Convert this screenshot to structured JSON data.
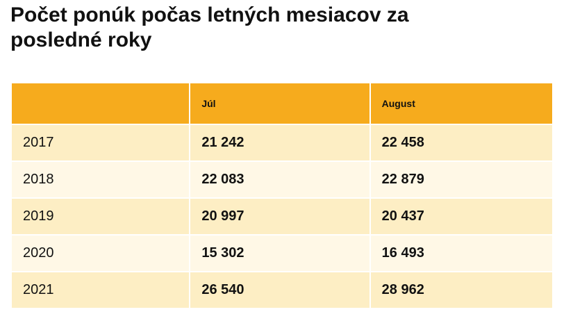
{
  "header": {
    "title": "Počet ponúk počas letných mesiacov za posledné roky"
  },
  "table": {
    "columns": [
      "",
      "Júl",
      "August"
    ],
    "rows": [
      [
        "2017",
        "21 242",
        "22 458"
      ],
      [
        "2018",
        "22 083",
        "22 879"
      ],
      [
        "2019",
        "20 997",
        "20 437"
      ],
      [
        "2020",
        "15 302",
        "16 493"
      ],
      [
        "2021",
        "26 540",
        "28 962"
      ]
    ]
  }
}
